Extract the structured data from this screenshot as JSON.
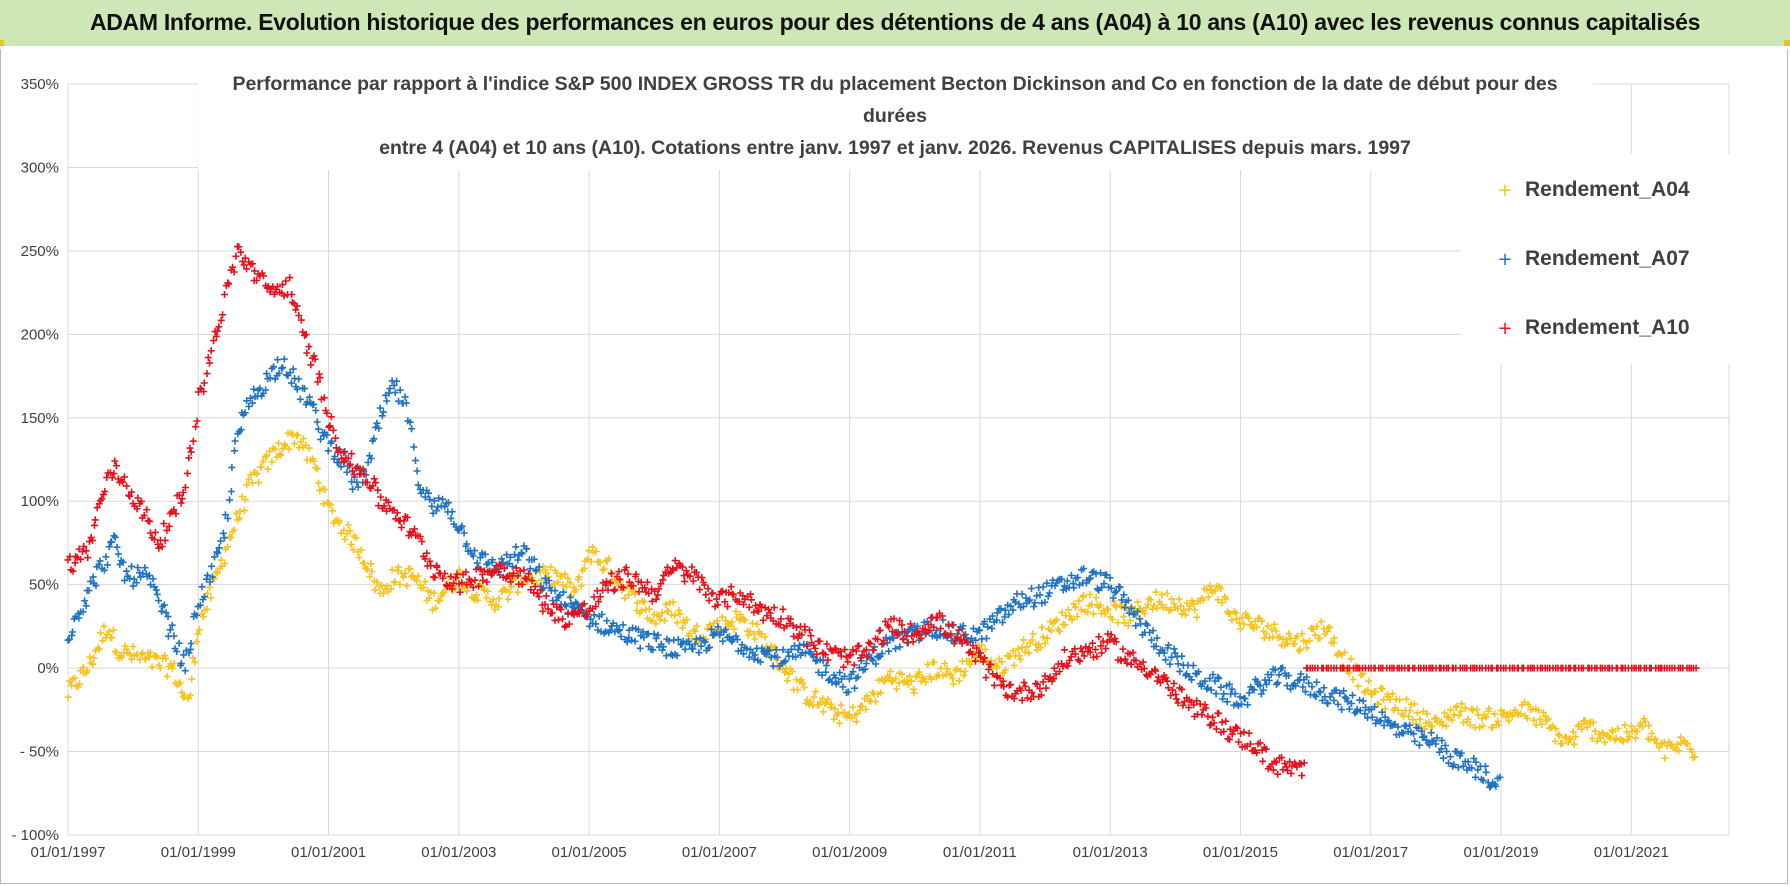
{
  "banner": {
    "title": "ADAM Informe. Evolution historique des performances en euros pour des détentions de 4 ans (A04) à 10 ans (A10) avec les revenus connus capitalisés"
  },
  "colors": {
    "banner_bg": "#cde7b6",
    "accent_corner": "#e6c21a",
    "A04": "#f7c31f",
    "A07": "#1f73c4",
    "A10": "#e8111b",
    "grid": "#d9d9d9"
  },
  "chart_data": {
    "type": "scatter",
    "title_lines": [
      "Performance par rapport à l'indice S&P 500 INDEX GROSS TR  du placement Becton Dickinson and Co en fonction de la date de début pour des",
      "durées",
      "entre 4 (A04) et 10 ans (A10). Cotations entre janv. 1997 et janv. 2026. Revenus CAPITALISES depuis mars. 1997"
    ],
    "xlabel": "",
    "ylabel": "",
    "x_range": [
      "1997-01-01",
      "2022-06-01"
    ],
    "x_ticks": [
      "01/01/1997",
      "01/01/1999",
      "01/01/2001",
      "01/01/2003",
      "01/01/2005",
      "01/01/2007",
      "01/01/2009",
      "01/01/2011",
      "01/01/2013",
      "01/01/2015",
      "01/01/2017",
      "01/01/2019",
      "01/01/2021"
    ],
    "x_tick_years": [
      1997,
      1999,
      2001,
      2003,
      2005,
      2007,
      2009,
      2011,
      2013,
      2015,
      2017,
      2019,
      2021
    ],
    "y_ticks": [
      "350%",
      "300%",
      "250%",
      "200%",
      "150%",
      "100%",
      "50%",
      "0%",
      "- 50%",
      "- 100%"
    ],
    "y_tick_values": [
      350,
      300,
      250,
      200,
      150,
      100,
      50,
      0,
      -50,
      -100
    ],
    "ylim": [
      -100,
      350
    ],
    "grid": true,
    "legend_position": "top-right",
    "marker": "+",
    "series": [
      {
        "name": "Rendement_A04",
        "color": "#f7c31f",
        "noise": 6,
        "points": [
          [
            1997.0,
            -15
          ],
          [
            1997.3,
            0
          ],
          [
            1997.6,
            25
          ],
          [
            1997.8,
            10
          ],
          [
            1998.2,
            5
          ],
          [
            1998.6,
            0
          ],
          [
            1998.85,
            -22
          ],
          [
            1999.0,
            25
          ],
          [
            1999.2,
            45
          ],
          [
            1999.5,
            80
          ],
          [
            1999.8,
            110
          ],
          [
            2000.2,
            130
          ],
          [
            2000.5,
            140
          ],
          [
            2000.8,
            120
          ],
          [
            2001.0,
            95
          ],
          [
            2001.3,
            80
          ],
          [
            2001.5,
            70
          ],
          [
            2001.8,
            45
          ],
          [
            2002.0,
            55
          ],
          [
            2002.3,
            55
          ],
          [
            2002.6,
            40
          ],
          [
            2003.0,
            55
          ],
          [
            2003.3,
            45
          ],
          [
            2003.6,
            40
          ],
          [
            2004.0,
            55
          ],
          [
            2004.5,
            55
          ],
          [
            2004.8,
            45
          ],
          [
            2005.0,
            70
          ],
          [
            2005.3,
            60
          ],
          [
            2005.6,
            45
          ],
          [
            2006.0,
            30
          ],
          [
            2006.3,
            35
          ],
          [
            2006.6,
            20
          ],
          [
            2007.0,
            25
          ],
          [
            2007.3,
            30
          ],
          [
            2007.6,
            20
          ],
          [
            2008.0,
            0
          ],
          [
            2008.3,
            -15
          ],
          [
            2008.7,
            -25
          ],
          [
            2009.0,
            -30
          ],
          [
            2009.3,
            -20
          ],
          [
            2009.6,
            -5
          ],
          [
            2010.0,
            -10
          ],
          [
            2010.3,
            0
          ],
          [
            2010.6,
            -5
          ],
          [
            2011.0,
            10
          ],
          [
            2011.3,
            0
          ],
          [
            2011.6,
            10
          ],
          [
            2012.0,
            20
          ],
          [
            2012.3,
            30
          ],
          [
            2012.6,
            40
          ],
          [
            2013.0,
            35
          ],
          [
            2013.3,
            30
          ],
          [
            2013.6,
            40
          ],
          [
            2014.0,
            40
          ],
          [
            2014.3,
            35
          ],
          [
            2014.6,
            50
          ],
          [
            2014.9,
            30
          ],
          [
            2015.3,
            25
          ],
          [
            2015.6,
            20
          ],
          [
            2015.9,
            15
          ],
          [
            2016.3,
            25
          ],
          [
            2016.6,
            5
          ],
          [
            2017.0,
            -15
          ],
          [
            2017.3,
            -20
          ],
          [
            2017.6,
            -25
          ],
          [
            2018.0,
            -35
          ],
          [
            2018.3,
            -25
          ],
          [
            2018.6,
            -30
          ],
          [
            2019.0,
            -30
          ],
          [
            2019.3,
            -25
          ],
          [
            2019.6,
            -30
          ],
          [
            2020.0,
            -45
          ],
          [
            2020.3,
            -35
          ],
          [
            2020.6,
            -40
          ],
          [
            2021.0,
            -40
          ],
          [
            2021.2,
            -35
          ],
          [
            2021.5,
            -50
          ],
          [
            2021.8,
            -45
          ],
          [
            2022.0,
            -50
          ]
        ]
      },
      {
        "name": "Rendement_A07",
        "color": "#1f73c4",
        "noise": 6,
        "points": [
          [
            1997.0,
            20
          ],
          [
            1997.3,
            45
          ],
          [
            1997.5,
            60
          ],
          [
            1997.7,
            75
          ],
          [
            1997.9,
            55
          ],
          [
            1998.2,
            55
          ],
          [
            1998.4,
            40
          ],
          [
            1998.6,
            20
          ],
          [
            1998.8,
            0
          ],
          [
            1999.0,
            40
          ],
          [
            1999.2,
            55
          ],
          [
            1999.4,
            80
          ],
          [
            1999.6,
            140
          ],
          [
            1999.8,
            160
          ],
          [
            2000.0,
            170
          ],
          [
            2000.3,
            185
          ],
          [
            2000.5,
            170
          ],
          [
            2000.7,
            160
          ],
          [
            2000.9,
            140
          ],
          [
            2001.2,
            125
          ],
          [
            2001.4,
            110
          ],
          [
            2001.6,
            120
          ],
          [
            2001.8,
            150
          ],
          [
            2002.0,
            170
          ],
          [
            2002.2,
            155
          ],
          [
            2002.4,
            110
          ],
          [
            2002.6,
            95
          ],
          [
            2002.8,
            100
          ],
          [
            2003.0,
            85
          ],
          [
            2003.3,
            65
          ],
          [
            2003.6,
            60
          ],
          [
            2004.0,
            70
          ],
          [
            2004.3,
            50
          ],
          [
            2004.6,
            40
          ],
          [
            2005.0,
            30
          ],
          [
            2005.3,
            25
          ],
          [
            2005.6,
            20
          ],
          [
            2006.0,
            15
          ],
          [
            2006.5,
            10
          ],
          [
            2007.0,
            20
          ],
          [
            2007.3,
            15
          ],
          [
            2007.6,
            10
          ],
          [
            2008.0,
            5
          ],
          [
            2008.3,
            10
          ],
          [
            2008.6,
            0
          ],
          [
            2009.0,
            -10
          ],
          [
            2009.3,
            5
          ],
          [
            2009.6,
            15
          ],
          [
            2010.0,
            20
          ],
          [
            2010.3,
            25
          ],
          [
            2010.6,
            20
          ],
          [
            2011.0,
            20
          ],
          [
            2011.3,
            30
          ],
          [
            2011.6,
            40
          ],
          [
            2012.0,
            45
          ],
          [
            2012.3,
            50
          ],
          [
            2012.6,
            55
          ],
          [
            2013.0,
            50
          ],
          [
            2013.3,
            35
          ],
          [
            2013.6,
            20
          ],
          [
            2014.0,
            5
          ],
          [
            2014.3,
            -5
          ],
          [
            2014.6,
            -10
          ],
          [
            2015.0,
            -20
          ],
          [
            2015.3,
            -10
          ],
          [
            2015.6,
            -5
          ],
          [
            2016.0,
            -10
          ],
          [
            2016.3,
            -15
          ],
          [
            2016.6,
            -20
          ],
          [
            2017.0,
            -25
          ],
          [
            2017.3,
            -35
          ],
          [
            2017.6,
            -40
          ],
          [
            2018.0,
            -45
          ],
          [
            2018.3,
            -55
          ],
          [
            2018.6,
            -60
          ],
          [
            2018.9,
            -68
          ],
          [
            2019.0,
            -67
          ]
        ]
      },
      {
        "name": "Rendement_A10",
        "color": "#e8111b",
        "noise": 6,
        "points": [
          [
            1997.0,
            62
          ],
          [
            1997.3,
            70
          ],
          [
            1997.5,
            100
          ],
          [
            1997.7,
            120
          ],
          [
            1997.9,
            110
          ],
          [
            1998.2,
            90
          ],
          [
            1998.4,
            75
          ],
          [
            1998.6,
            90
          ],
          [
            1998.8,
            110
          ],
          [
            1999.0,
            160
          ],
          [
            1999.2,
            190
          ],
          [
            1999.4,
            220
          ],
          [
            1999.6,
            250
          ],
          [
            1999.8,
            240
          ],
          [
            2000.0,
            230
          ],
          [
            2000.2,
            225
          ],
          [
            2000.4,
            230
          ],
          [
            2000.6,
            200
          ],
          [
            2000.8,
            180
          ],
          [
            2001.0,
            150
          ],
          [
            2001.2,
            130
          ],
          [
            2001.4,
            120
          ],
          [
            2001.6,
            115
          ],
          [
            2001.8,
            100
          ],
          [
            2002.0,
            95
          ],
          [
            2002.2,
            85
          ],
          [
            2002.4,
            75
          ],
          [
            2002.6,
            60
          ],
          [
            2002.8,
            55
          ],
          [
            2003.0,
            50
          ],
          [
            2003.3,
            55
          ],
          [
            2003.6,
            60
          ],
          [
            2004.0,
            55
          ],
          [
            2004.3,
            40
          ],
          [
            2004.6,
            30
          ],
          [
            2005.0,
            35
          ],
          [
            2005.3,
            50
          ],
          [
            2005.6,
            55
          ],
          [
            2006.0,
            45
          ],
          [
            2006.3,
            60
          ],
          [
            2006.6,
            55
          ],
          [
            2007.0,
            40
          ],
          [
            2007.3,
            45
          ],
          [
            2007.6,
            35
          ],
          [
            2008.0,
            30
          ],
          [
            2008.3,
            20
          ],
          [
            2008.6,
            10
          ],
          [
            2009.0,
            5
          ],
          [
            2009.3,
            10
          ],
          [
            2009.6,
            25
          ],
          [
            2010.0,
            20
          ],
          [
            2010.3,
            30
          ],
          [
            2010.6,
            20
          ],
          [
            2011.0,
            5
          ],
          [
            2011.3,
            -10
          ],
          [
            2011.6,
            -15
          ],
          [
            2012.0,
            -10
          ],
          [
            2012.3,
            5
          ],
          [
            2012.6,
            10
          ],
          [
            2013.0,
            15
          ],
          [
            2013.3,
            5
          ],
          [
            2013.6,
            0
          ],
          [
            2014.0,
            -15
          ],
          [
            2014.3,
            -25
          ],
          [
            2014.6,
            -30
          ],
          [
            2014.9,
            -40
          ],
          [
            2015.2,
            -45
          ],
          [
            2015.5,
            -58
          ],
          [
            2015.8,
            -60
          ],
          [
            2016.0,
            -62
          ]
        ]
      },
      {
        "name": "Rendement_A10 (flat)",
        "color": "#e8111b",
        "noise": 0,
        "points": [
          [
            2016.0,
            0
          ],
          [
            2022.0,
            0
          ]
        ]
      }
    ]
  },
  "legend": {
    "items": [
      {
        "label": "Rendement_A04",
        "color": "#f7c31f"
      },
      {
        "label": "Rendement_A07",
        "color": "#1f73c4"
      },
      {
        "label": "Rendement_A10",
        "color": "#e8111b"
      }
    ]
  }
}
